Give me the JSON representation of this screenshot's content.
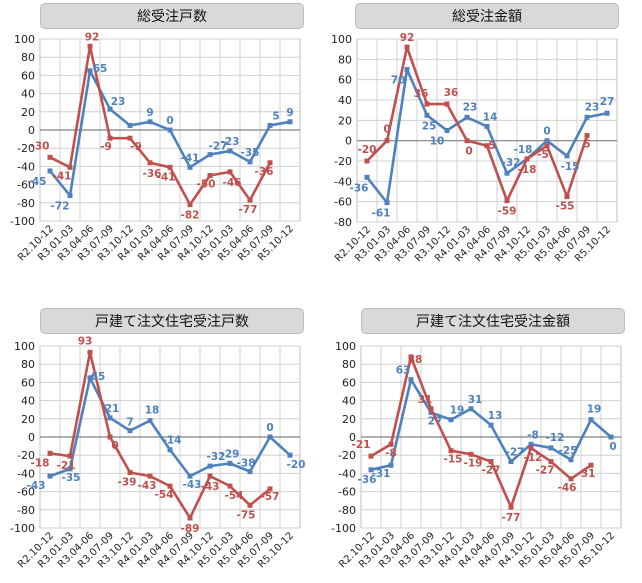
{
  "chart_data": [
    {
      "type": "line",
      "title": "総受注戸数",
      "categories": [
        "R2.10-12",
        "R3.01-03",
        "R3.04-06",
        "R3.07-09",
        "R3.10-12",
        "R4.01-03",
        "R4.04-06",
        "R4.07-09",
        "R4.10-12",
        "R5.01-03",
        "R5.04-06",
        "R5.07-09",
        "R5.10-12"
      ],
      "ylim": [
        -100,
        100
      ],
      "yticks": [
        100,
        80,
        60,
        40,
        20,
        0,
        -20,
        -40,
        -60,
        -80,
        -100
      ],
      "grid": true,
      "series": [
        {
          "color": "#4f81bd",
          "values": [
            -45,
            -72,
            65,
            23,
            5,
            9,
            0,
            -41,
            -27,
            -23,
            -35,
            5,
            9
          ],
          "labels": [
            "-45",
            "-72",
            "65",
            "23",
            "",
            "9",
            "0",
            "-41",
            "-27",
            "-23",
            "-35",
            "5",
            "9"
          ]
        },
        {
          "color": "#c0504d",
          "values": [
            -30,
            -41,
            92,
            -9,
            -9,
            -36,
            -41,
            -82,
            -50,
            -46,
            -77,
            -36,
            null
          ],
          "labels": [
            "-30",
            "-41",
            "92",
            "-9",
            "-9",
            "-36",
            "-41",
            "-82",
            "-50",
            "-46",
            "-77",
            "-36",
            ""
          ]
        }
      ]
    },
    {
      "type": "line",
      "title": "総受注金額",
      "categories": [
        "R2.10-12",
        "R3.01-03",
        "R3.04-06",
        "R3.07-09",
        "R3.10-12",
        "R4.01-03",
        "R4.04-06",
        "R4.07-09",
        "R4.10-12",
        "R5.01-03",
        "R5.04-06",
        "R5.07-09",
        "R5.10-12"
      ],
      "ylim": [
        -80,
        100
      ],
      "yticks": [
        100,
        80,
        60,
        40,
        20,
        0,
        -20,
        -40,
        -60,
        -80
      ],
      "grid": true,
      "series": [
        {
          "color": "#4f81bd",
          "values": [
            -36,
            -61,
            70,
            25,
            10,
            23,
            14,
            -32,
            -18,
            0,
            -15,
            23,
            27
          ],
          "labels": [
            "-36",
            "-61",
            "70",
            "25",
            "10",
            "23",
            "14",
            "-32",
            "-18",
            "0",
            "-15",
            "23",
            "27"
          ]
        },
        {
          "color": "#c0504d",
          "values": [
            -20,
            0,
            92,
            36,
            36,
            0,
            -5,
            -59,
            -18,
            -5,
            -55,
            5,
            null
          ],
          "labels": [
            "-20",
            "0",
            "92",
            "36",
            "36",
            "0",
            "-5",
            "-59",
            "-18",
            "-5",
            "-55",
            "5",
            ""
          ]
        }
      ]
    },
    {
      "type": "line",
      "title": "戸建て注文住宅受注戸数",
      "categories": [
        "R2.10-12",
        "R3.01-03",
        "R3.04-06",
        "R3.07-09",
        "R3.10-12",
        "R4.01-03",
        "R4.04-06",
        "R4.07-09",
        "R4.10-12",
        "R5.01-03",
        "R5.04-06",
        "R5.07-09",
        "R5.10-12"
      ],
      "ylim": [
        -100,
        100
      ],
      "yticks": [
        100,
        80,
        60,
        40,
        20,
        0,
        -20,
        -40,
        -60,
        -80,
        -100
      ],
      "grid": true,
      "series": [
        {
          "color": "#4f81bd",
          "values": [
            -43,
            -35,
            65,
            21,
            7,
            18,
            -14,
            -43,
            -32,
            -29,
            -38,
            0,
            -20
          ],
          "labels": [
            "-43",
            "-35",
            "65",
            "21",
            "7",
            "18",
            "-14",
            "-43",
            "-32",
            "-29",
            "-38",
            "0",
            "-20"
          ]
        },
        {
          "color": "#c0504d",
          "values": [
            -18,
            -21,
            93,
            0,
            -39,
            -43,
            -54,
            -89,
            -43,
            -54,
            -75,
            -57,
            null
          ],
          "labels": [
            "-18",
            "-21",
            "93",
            "0",
            "-39",
            "-43",
            "-54",
            "-89",
            "-43",
            "-54",
            "-75",
            "-57",
            ""
          ]
        }
      ]
    },
    {
      "type": "line",
      "title": "戸建て注文住宅受注金額",
      "categories": [
        "R2.10-12",
        "R3.01-03",
        "R3.04-06",
        "R3.07-09",
        "R3.10-12",
        "R4.01-03",
        "R4.04-06",
        "R4.07-09",
        "R4.10-12",
        "R5.01-03",
        "R5.04-06",
        "R5.07-09",
        "R5.10-12"
      ],
      "ylim": [
        -100,
        100
      ],
      "yticks": [
        100,
        80,
        60,
        40,
        20,
        0,
        -20,
        -40,
        -60,
        -80,
        -100
      ],
      "grid": true,
      "series": [
        {
          "color": "#4f81bd",
          "values": [
            -36,
            -31,
            63,
            27,
            19,
            31,
            13,
            -27,
            -8,
            -12,
            -25,
            19,
            0
          ],
          "labels": [
            "-36",
            "-31",
            "63",
            "27",
            "19",
            "31",
            "13",
            "-27",
            "-8",
            "-12",
            "-25",
            "19",
            "0"
          ]
        },
        {
          "color": "#c0504d",
          "values": [
            -21,
            -8,
            88,
            31,
            -15,
            -19,
            -27,
            -77,
            -12,
            -27,
            -46,
            -31,
            null
          ],
          "labels": [
            "-21",
            "-8",
            "88",
            "31",
            "-15",
            "-19",
            "-27",
            "-77",
            "-12",
            "-27",
            "-46",
            "-31",
            ""
          ]
        }
      ]
    }
  ]
}
